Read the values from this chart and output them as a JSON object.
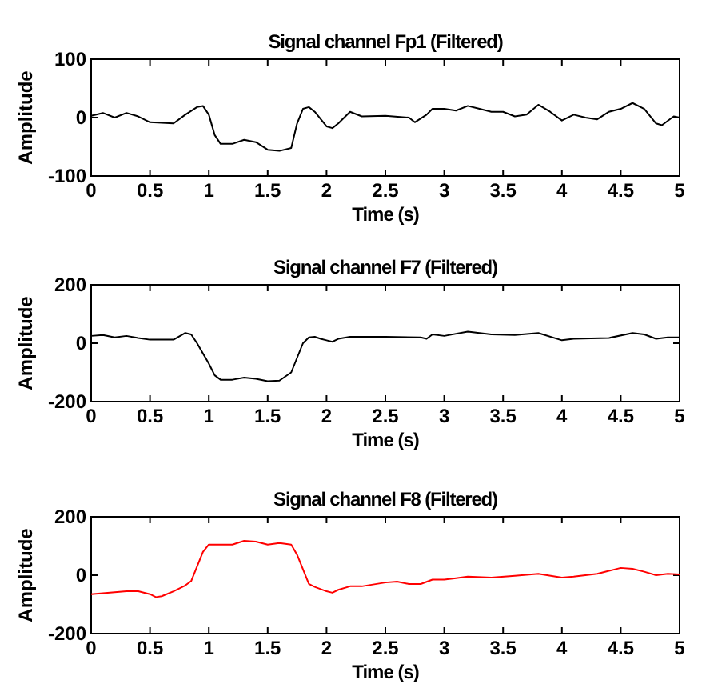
{
  "chart_data": [
    {
      "type": "line",
      "title": "Signal channel Fp1 (Filtered)",
      "xlabel": "Time (s)",
      "ylabel": "Amplitude",
      "xlim": [
        0,
        5
      ],
      "ylim": [
        -100,
        100
      ],
      "xticks": [
        0,
        0.5,
        1,
        1.5,
        2,
        2.5,
        3,
        3.5,
        4,
        4.5,
        5
      ],
      "yticks": [
        -100,
        0,
        100
      ],
      "x": [
        0,
        0.1,
        0.2,
        0.3,
        0.4,
        0.5,
        0.7,
        0.8,
        0.9,
        0.95,
        1.0,
        1.05,
        1.1,
        1.2,
        1.3,
        1.4,
        1.5,
        1.6,
        1.7,
        1.75,
        1.8,
        1.85,
        1.9,
        2.0,
        2.05,
        2.1,
        2.2,
        2.3,
        2.5,
        2.7,
        2.75,
        2.85,
        2.9,
        3.0,
        3.1,
        3.2,
        3.3,
        3.4,
        3.5,
        3.6,
        3.7,
        3.8,
        3.9,
        4.0,
        4.1,
        4.2,
        4.3,
        4.4,
        4.5,
        4.6,
        4.7,
        4.8,
        4.85,
        4.95,
        5
      ],
      "series": [
        {
          "color": "#000000",
          "values": [
            3,
            8,
            0,
            8,
            2,
            -8,
            -10,
            5,
            18,
            20,
            5,
            -30,
            -45,
            -45,
            -38,
            -42,
            -55,
            -57,
            -52,
            -10,
            15,
            18,
            10,
            -15,
            -18,
            -10,
            10,
            2,
            3,
            0,
            -8,
            5,
            15,
            15,
            12,
            20,
            15,
            10,
            10,
            2,
            5,
            22,
            10,
            -5,
            5,
            0,
            -3,
            10,
            15,
            25,
            15,
            -10,
            -13,
            2,
            0
          ]
        }
      ]
    },
    {
      "type": "line",
      "title": "Signal channel F7 (Filtered)",
      "xlabel": "Time (s)",
      "ylabel": "Amplitude",
      "xlim": [
        0,
        5
      ],
      "ylim": [
        -200,
        200
      ],
      "xticks": [
        0,
        0.5,
        1,
        1.5,
        2,
        2.5,
        3,
        3.5,
        4,
        4.5,
        5
      ],
      "yticks": [
        -200,
        0,
        200
      ],
      "x": [
        0,
        0.1,
        0.2,
        0.3,
        0.4,
        0.5,
        0.7,
        0.8,
        0.85,
        0.9,
        1.0,
        1.05,
        1.1,
        1.2,
        1.3,
        1.4,
        1.5,
        1.6,
        1.7,
        1.75,
        1.8,
        1.85,
        1.9,
        1.95,
        2.0,
        2.05,
        2.1,
        2.2,
        2.5,
        2.8,
        2.85,
        2.9,
        3.0,
        3.2,
        3.4,
        3.6,
        3.8,
        4.0,
        4.1,
        4.4,
        4.6,
        4.7,
        4.8,
        4.9,
        5
      ],
      "series": [
        {
          "color": "#000000",
          "values": [
            25,
            28,
            20,
            25,
            18,
            12,
            12,
            35,
            30,
            0,
            -70,
            -110,
            -125,
            -125,
            -118,
            -122,
            -130,
            -128,
            -100,
            -50,
            0,
            20,
            22,
            15,
            10,
            5,
            15,
            22,
            22,
            20,
            15,
            30,
            25,
            40,
            30,
            28,
            35,
            10,
            15,
            18,
            35,
            30,
            15,
            20,
            20
          ]
        }
      ]
    },
    {
      "type": "line",
      "title": "Signal channel F8 (Filtered)",
      "xlabel": "Time (s)",
      "ylabel": "Amplitude",
      "xlim": [
        0,
        5
      ],
      "ylim": [
        -200,
        200
      ],
      "xticks": [
        0,
        0.5,
        1,
        1.5,
        2,
        2.5,
        3,
        3.5,
        4,
        4.5,
        5
      ],
      "yticks": [
        -200,
        0,
        200
      ],
      "x": [
        0,
        0.3,
        0.4,
        0.5,
        0.55,
        0.6,
        0.7,
        0.8,
        0.85,
        0.9,
        0.95,
        1.0,
        1.1,
        1.2,
        1.3,
        1.4,
        1.5,
        1.6,
        1.7,
        1.75,
        1.8,
        1.85,
        1.9,
        2.0,
        2.05,
        2.1,
        2.2,
        2.3,
        2.5,
        2.6,
        2.7,
        2.8,
        2.9,
        3.0,
        3.1,
        3.2,
        3.4,
        3.6,
        3.8,
        4.0,
        4.1,
        4.2,
        4.3,
        4.4,
        4.5,
        4.6,
        4.7,
        4.8,
        4.9,
        5
      ],
      "series": [
        {
          "color": "#ff0000",
          "values": [
            -65,
            -55,
            -55,
            -65,
            -75,
            -72,
            -55,
            -35,
            -20,
            30,
            80,
            105,
            105,
            105,
            118,
            115,
            105,
            110,
            105,
            70,
            20,
            -30,
            -40,
            -55,
            -60,
            -50,
            -38,
            -38,
            -25,
            -22,
            -30,
            -30,
            -15,
            -15,
            -10,
            -5,
            -8,
            -2,
            5,
            -8,
            -5,
            0,
            5,
            15,
            25,
            22,
            12,
            0,
            5,
            3
          ]
        }
      ]
    }
  ]
}
